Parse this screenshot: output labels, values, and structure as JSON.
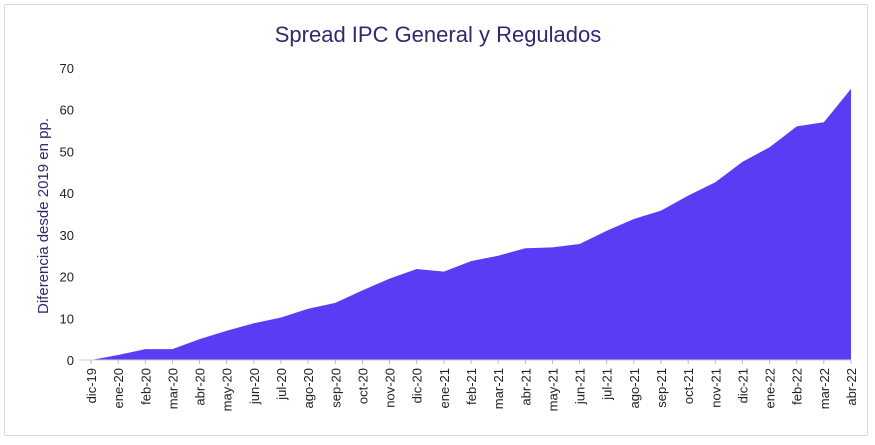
{
  "chart_data": {
    "type": "area",
    "title": "Spread IPC General y Regulados",
    "xlabel": "",
    "ylabel": "Diferencia desde 2019 en pp.",
    "ylim": [
      0,
      70
    ],
    "yticks": [
      0,
      10,
      20,
      30,
      40,
      50,
      60,
      70
    ],
    "grid": false,
    "fill_color": "#5b3cf5",
    "categories": [
      "dic-19",
      "ene-20",
      "feb-20",
      "mar-20",
      "abr-20",
      "may-20",
      "jun-20",
      "jul-20",
      "ago-20",
      "sep-20",
      "oct-20",
      "nov-20",
      "dic-20",
      "ene-21",
      "feb-21",
      "mar-21",
      "abr-21",
      "may-21",
      "jun-21",
      "jul-21",
      "ago-21",
      "sep-21",
      "oct-21",
      "nov-21",
      "dic-21",
      "ene-22",
      "feb-22",
      "mar-22",
      "abr-22"
    ],
    "values": [
      0,
      1.2,
      2.6,
      2.6,
      5.0,
      7.0,
      8.8,
      10.2,
      12.3,
      13.7,
      16.7,
      19.5,
      21.8,
      21.2,
      23.7,
      25.0,
      26.8,
      27.0,
      27.8,
      31.0,
      33.8,
      35.8,
      39.4,
      42.6,
      47.5,
      51.0,
      56.0,
      57.0,
      65.0
    ]
  }
}
